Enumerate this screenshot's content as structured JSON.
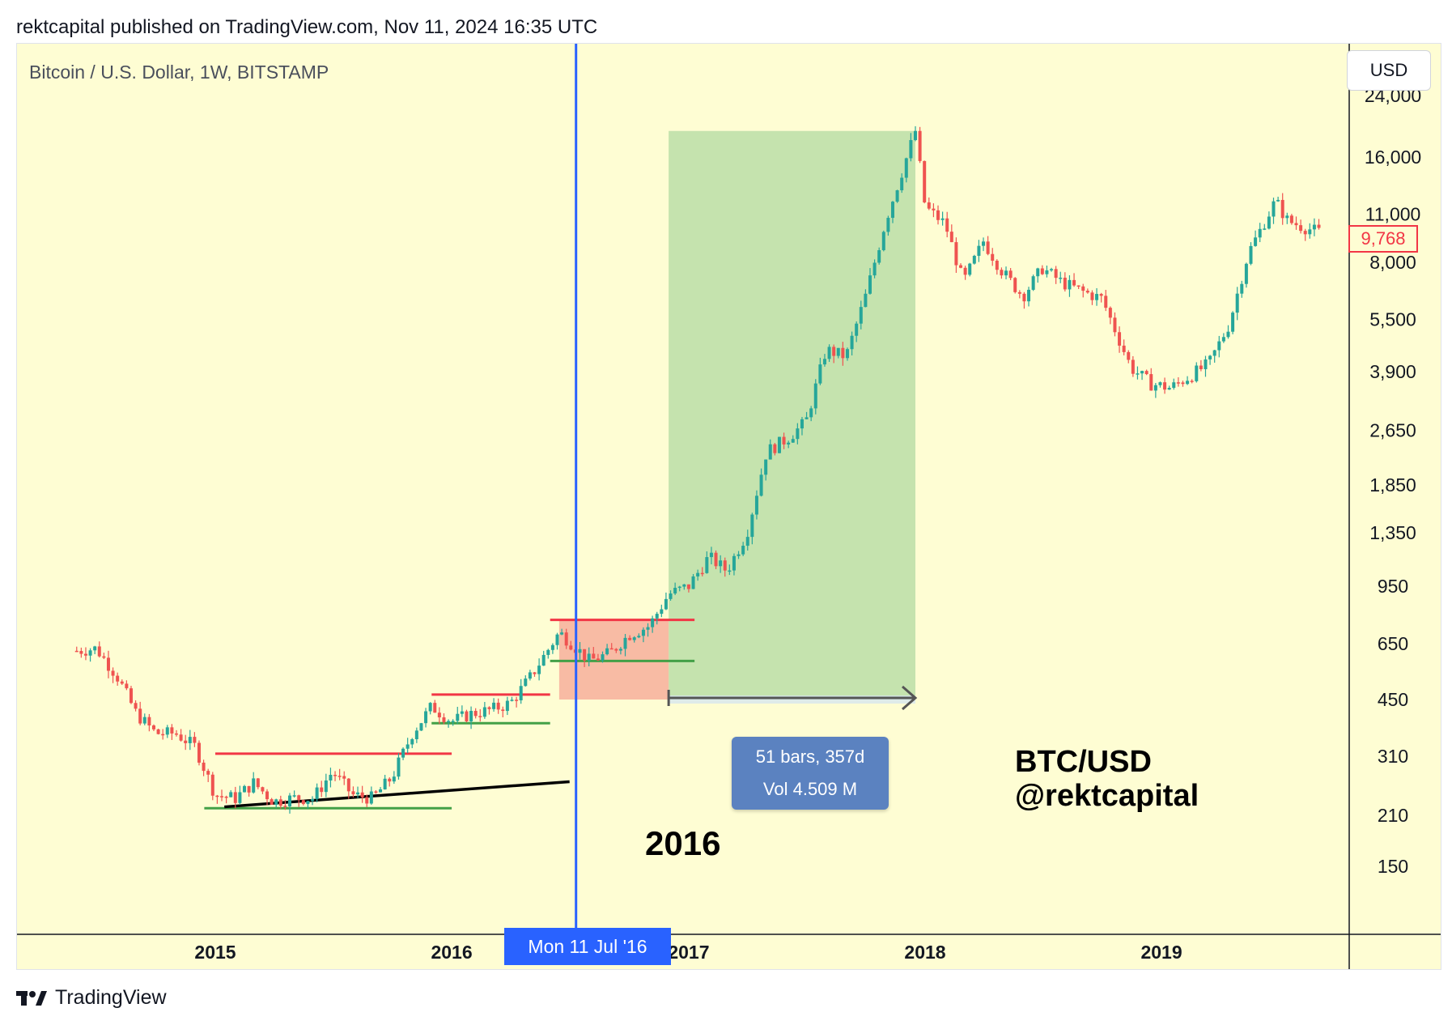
{
  "header": {
    "published_text": "rektcapital published on TradingView.com, Nov 11, 2024 16:35 UTC"
  },
  "chart": {
    "symbol_label": "Bitcoin / U.S. Dollar, 1W, BITSTAMP",
    "currency": "USD",
    "cursor_date": "Mon 11 Jul '16",
    "last_price": "9,768",
    "range_info": {
      "bars": "51 bars, 357d",
      "volume": "Vol 4.509 M"
    },
    "annotation_year": "2016",
    "watermark_line1": "BTC/USD",
    "watermark_line2": "@rektcapital"
  },
  "footer": {
    "logo_text": "TradingView"
  },
  "colors": {
    "background": "#fefdd3",
    "up": "#26a69a",
    "down": "#ef5350",
    "resistance": "#f23645",
    "support": "#43a047",
    "trendline": "#000000",
    "cursor": "#2962ff",
    "green_zone": "#c5e3ae",
    "red_zone": "#f8bba4"
  },
  "chart_data": {
    "type": "candlestick",
    "interval": "1W",
    "y_scale": "log",
    "y_ticks": [
      "150",
      "210",
      "310",
      "450",
      "650",
      "950",
      "1,350",
      "1,850",
      "2,650",
      "3,900",
      "5,500",
      "8,000",
      "11,000",
      "16,000",
      "24,000"
    ],
    "x_ticks": [
      "2015",
      "2016",
      "2017",
      "2018",
      "2019"
    ],
    "path": [
      [
        "2014-06-01",
        620
      ],
      [
        "2014-07-01",
        630
      ],
      [
        "2014-08-01",
        530
      ],
      [
        "2014-09-01",
        410
      ],
      [
        "2014-10-01",
        360
      ],
      [
        "2014-11-01",
        360
      ],
      [
        "2014-12-01",
        330
      ],
      [
        "2015-01-01",
        240
      ],
      [
        "2015-02-01",
        235
      ],
      [
        "2015-03-01",
        260
      ],
      [
        "2015-04-01",
        230
      ],
      [
        "2015-05-01",
        235
      ],
      [
        "2015-06-01",
        235
      ],
      [
        "2015-07-01",
        280
      ],
      [
        "2015-08-01",
        240
      ],
      [
        "2015-09-01",
        235
      ],
      [
        "2015-10-01",
        270
      ],
      [
        "2015-11-01",
        360
      ],
      [
        "2015-12-01",
        430
      ],
      [
        "2016-01-01",
        390
      ],
      [
        "2016-02-01",
        410
      ],
      [
        "2016-03-01",
        420
      ],
      [
        "2016-04-01",
        440
      ],
      [
        "2016-05-01",
        520
      ],
      [
        "2016-06-15",
        700
      ],
      [
        "2016-07-01",
        660
      ],
      [
        "2016-08-01",
        580
      ],
      [
        "2016-09-01",
        610
      ],
      [
        "2016-10-01",
        690
      ],
      [
        "2016-11-01",
        730
      ],
      [
        "2016-12-01",
        900
      ],
      [
        "2017-01-01",
        950
      ],
      [
        "2017-02-01",
        1150
      ],
      [
        "2017-03-01",
        1050
      ],
      [
        "2017-04-01",
        1350
      ],
      [
        "2017-05-01",
        2300
      ],
      [
        "2017-06-01",
        2500
      ],
      [
        "2017-07-01",
        2800
      ],
      [
        "2017-08-01",
        4500
      ],
      [
        "2017-09-01",
        4300
      ],
      [
        "2017-10-01",
        6400
      ],
      [
        "2017-11-01",
        10500
      ],
      [
        "2017-12-17",
        19000
      ],
      [
        "2018-01-01",
        11500
      ],
      [
        "2018-02-01",
        10300
      ],
      [
        "2018-03-01",
        7000
      ],
      [
        "2018-04-01",
        9200
      ],
      [
        "2018-05-01",
        7500
      ],
      [
        "2018-06-01",
        6400
      ],
      [
        "2018-07-01",
        7700
      ],
      [
        "2018-08-01",
        7000
      ],
      [
        "2018-09-01",
        6600
      ],
      [
        "2018-10-01",
        6300
      ],
      [
        "2018-11-15",
        4000
      ],
      [
        "2018-12-15",
        3600
      ],
      [
        "2019-01-15",
        3500
      ],
      [
        "2019-02-15",
        3800
      ],
      [
        "2019-03-15",
        4100
      ],
      [
        "2019-04-15",
        5300
      ],
      [
        "2019-05-15",
        8500
      ],
      [
        "2019-06-26",
        12000
      ],
      [
        "2019-07-15",
        10500
      ],
      [
        "2019-08-15",
        10000
      ],
      [
        "2019-09-01",
        9768
      ]
    ],
    "resistance_lines": [
      {
        "from": "2015-01-01",
        "to": "2016-01-01",
        "price": 315
      },
      {
        "from": "2015-12-01",
        "to": "2016-06-01",
        "price": 465
      },
      {
        "from": "2016-06-01",
        "to": "2017-01-10",
        "price": 760
      }
    ],
    "support_lines": [
      {
        "from": "2014-12-15",
        "to": "2016-01-01",
        "price": 220
      },
      {
        "from": "2015-12-01",
        "to": "2016-06-01",
        "price": 385
      },
      {
        "from": "2016-06-01",
        "to": "2017-01-10",
        "price": 580
      }
    ],
    "trendline": {
      "from": [
        "2015-01-15",
        222
      ],
      "to": [
        "2016-07-01",
        262
      ]
    },
    "green_zone": {
      "from": "2016-12-01",
      "to": "2017-12-17",
      "low": 450,
      "high": 19000
    },
    "red_zone": {
      "from": "2016-06-15",
      "to": "2016-12-01",
      "low": 450,
      "high": 760
    },
    "range_arrow": {
      "from": "2016-12-01",
      "to": "2017-12-17",
      "price": 450
    },
    "cursor": "2016-07-11",
    "last_price_marker": 9768
  }
}
